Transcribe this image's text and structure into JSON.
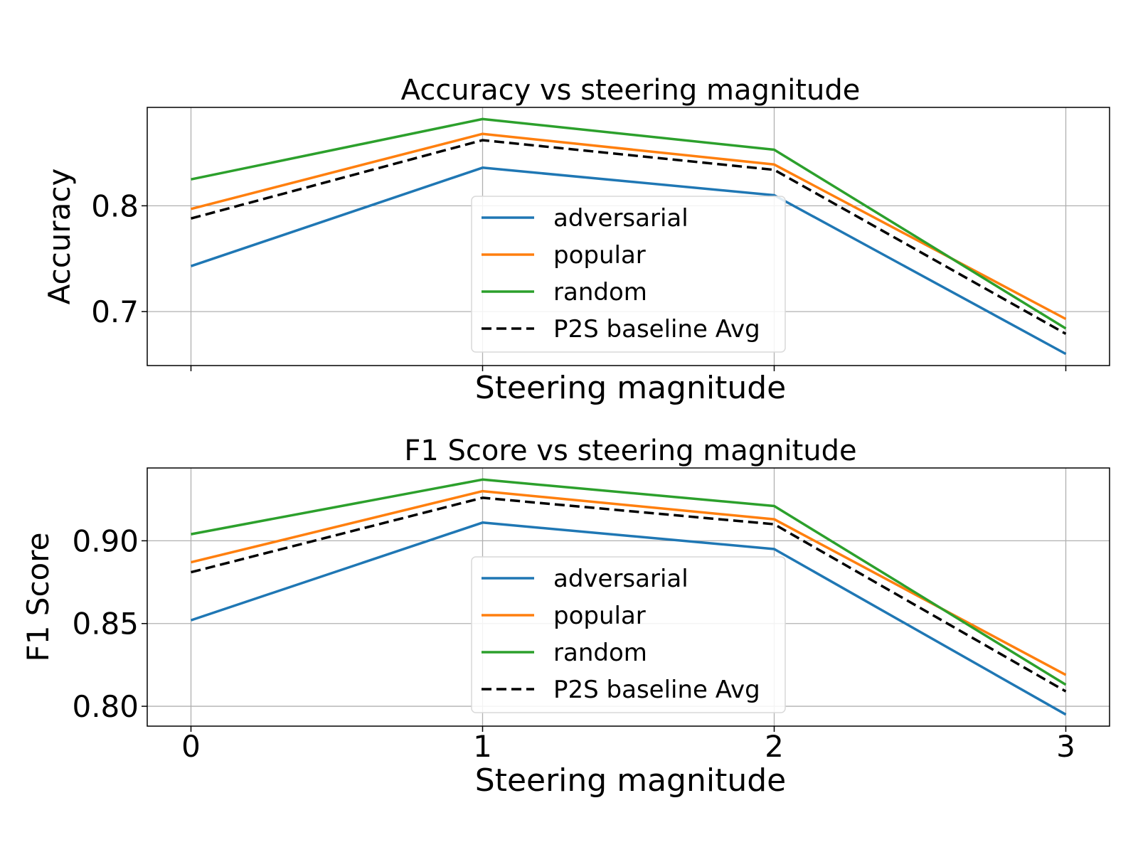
{
  "chart_data": [
    {
      "type": "line",
      "title": "Accuracy vs steering magnitude",
      "xlabel": "Steering magnitude",
      "ylabel": "Accuracy",
      "x": [
        0,
        1,
        2,
        3
      ],
      "xlim": [
        -0.15,
        3.15
      ],
      "ylim": [
        0.649,
        0.893
      ],
      "xticks": [
        0,
        1,
        2,
        3
      ],
      "xtick_labels": [
        "",
        "",
        "",
        ""
      ],
      "yticks": [
        0.7,
        0.8
      ],
      "ytick_labels": [
        "0.7",
        "0.8"
      ],
      "grid": true,
      "legend_position": "lower center",
      "series": [
        {
          "name": "adversarial",
          "color": "#1f77b4",
          "dash": "solid",
          "values": [
            0.743,
            0.836,
            0.81,
            0.66
          ]
        },
        {
          "name": "popular",
          "color": "#ff7f0e",
          "dash": "solid",
          "values": [
            0.797,
            0.868,
            0.839,
            0.693
          ]
        },
        {
          "name": "random",
          "color": "#2ca02c",
          "dash": "solid",
          "values": [
            0.825,
            0.882,
            0.853,
            0.684
          ]
        },
        {
          "name": "P2S baseline Avg",
          "color": "#000000",
          "dash": "dashed",
          "values": [
            0.788,
            0.862,
            0.834,
            0.679
          ]
        }
      ]
    },
    {
      "type": "line",
      "title": "F1 Score vs steering magnitude",
      "xlabel": "Steering magnitude",
      "ylabel": "F1 Score",
      "x": [
        0,
        1,
        2,
        3
      ],
      "xlim": [
        -0.15,
        3.15
      ],
      "ylim": [
        0.788,
        0.944
      ],
      "xticks": [
        0,
        1,
        2,
        3
      ],
      "xtick_labels": [
        "0",
        "1",
        "2",
        "3"
      ],
      "yticks": [
        0.8,
        0.85,
        0.9
      ],
      "ytick_labels": [
        "0.80",
        "0.85",
        "0.90"
      ],
      "grid": true,
      "legend_position": "lower center",
      "series": [
        {
          "name": "adversarial",
          "color": "#1f77b4",
          "dash": "solid",
          "values": [
            0.852,
            0.911,
            0.895,
            0.795
          ]
        },
        {
          "name": "popular",
          "color": "#ff7f0e",
          "dash": "solid",
          "values": [
            0.887,
            0.93,
            0.913,
            0.819
          ]
        },
        {
          "name": "random",
          "color": "#2ca02c",
          "dash": "solid",
          "values": [
            0.904,
            0.937,
            0.921,
            0.813
          ]
        },
        {
          "name": "P2S baseline Avg",
          "color": "#000000",
          "dash": "dashed",
          "values": [
            0.881,
            0.926,
            0.91,
            0.809
          ]
        }
      ]
    }
  ]
}
